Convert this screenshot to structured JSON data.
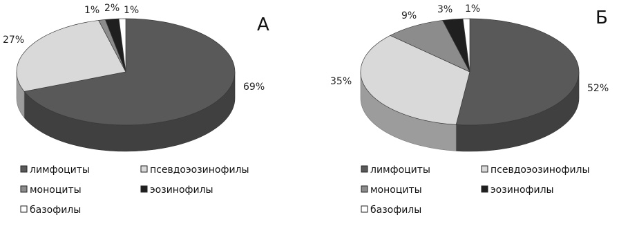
{
  "chart_data": [
    {
      "type": "pie",
      "title": "А",
      "slices": [
        {
          "name": "лимфоциты",
          "value": 69,
          "label": "69%"
        },
        {
          "name": "псевдоэозинофилы",
          "value": 27,
          "label": "27%"
        },
        {
          "name": "моноциты",
          "value": 1,
          "label": "1%"
        },
        {
          "name": "эозинофилы",
          "value": 2,
          "label": "2%"
        },
        {
          "name": "базофилы",
          "value": 1,
          "label": "1%"
        }
      ],
      "legend": [
        "лимфоциты",
        "псевдоэозинофилы",
        "моноциты",
        "эозинофилы",
        "базофилы"
      ]
    },
    {
      "type": "pie",
      "title": "Б",
      "slices": [
        {
          "name": "лимфоциты",
          "value": 52,
          "label": "52%"
        },
        {
          "name": "псевдоэозинофилы",
          "value": 35,
          "label": "35%"
        },
        {
          "name": "моноциты",
          "value": 9,
          "label": "9%"
        },
        {
          "name": "эозинофилы",
          "value": 3,
          "label": "3%"
        },
        {
          "name": "базофилы",
          "value": 1,
          "label": "1%"
        }
      ],
      "legend": [
        "лимфоциты",
        "псевдоэозинофилы",
        "моноциты",
        "эозинофилы",
        "базофилы"
      ]
    }
  ],
  "colors": {
    "лимфоциты": "#595959",
    "псевдоэозинофилы": "#d9d9d9",
    "моноциты": "#8c8c8c",
    "эозинофилы": "#1f1f1f",
    "базофилы": "#ffffff"
  }
}
